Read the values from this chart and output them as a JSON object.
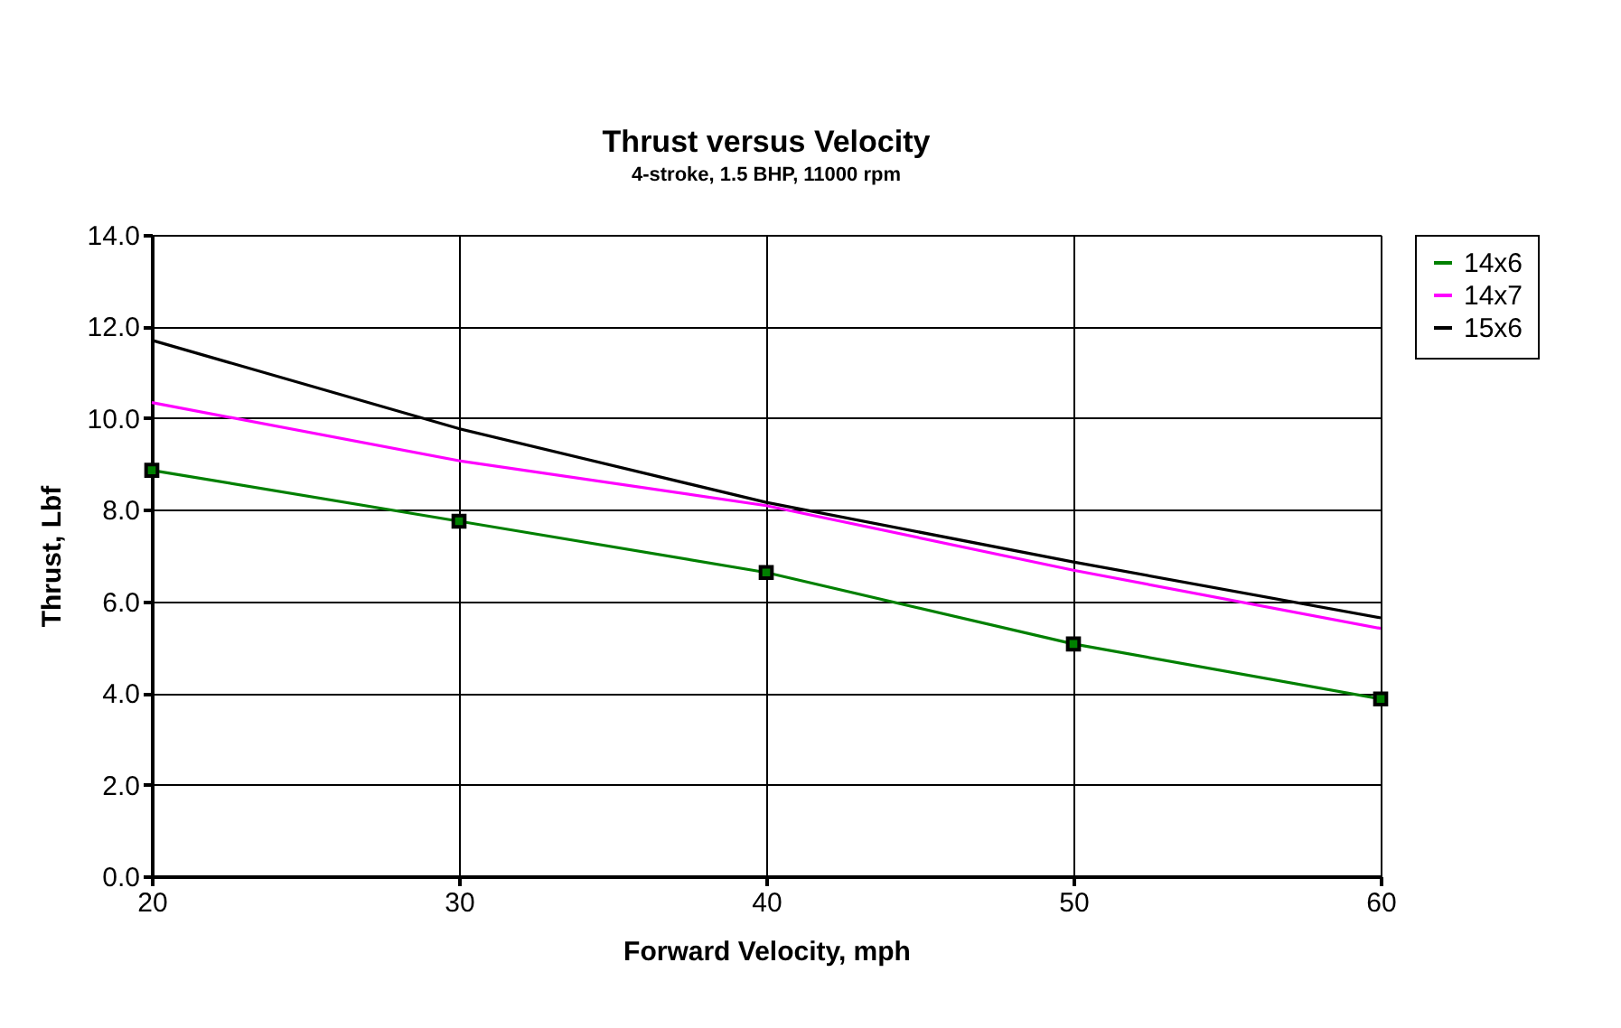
{
  "chart_data": {
    "type": "line",
    "title": "Thrust versus Velocity",
    "subtitle": "4-stroke, 1.5 BHP, 11000 rpm",
    "xlabel": "Forward Velocity, mph",
    "ylabel": "Thrust, Lbf",
    "x": [
      20,
      30,
      40,
      50,
      60
    ],
    "series": [
      {
        "name": "14x6",
        "color": "#008000",
        "marker": "square",
        "values": [
          8.86,
          7.75,
          6.63,
          5.07,
          3.87
        ]
      },
      {
        "name": "14x7",
        "color": "#ff00ff",
        "values": [
          10.34,
          9.07,
          8.09,
          6.68,
          5.41
        ]
      },
      {
        "name": "15x6",
        "color": "#000000",
        "values": [
          11.7,
          9.77,
          8.16,
          6.86,
          5.64
        ]
      }
    ],
    "xlim": [
      20,
      60
    ],
    "xticks": [
      20,
      30,
      40,
      50,
      60
    ],
    "ylim": [
      0,
      14
    ],
    "yticks": [
      {
        "value": 0,
        "label": "0.0"
      },
      {
        "value": 2,
        "label": "2.0"
      },
      {
        "value": 4,
        "label": "4.0"
      },
      {
        "value": 6,
        "label": "6.0"
      },
      {
        "value": 8,
        "label": "8.0"
      },
      {
        "value": 10,
        "label": "10.0"
      },
      {
        "value": 12,
        "label": "12.0"
      },
      {
        "value": 14,
        "label": "14.0"
      }
    ],
    "grid": true,
    "legend": "right",
    "line_style": "solid"
  }
}
